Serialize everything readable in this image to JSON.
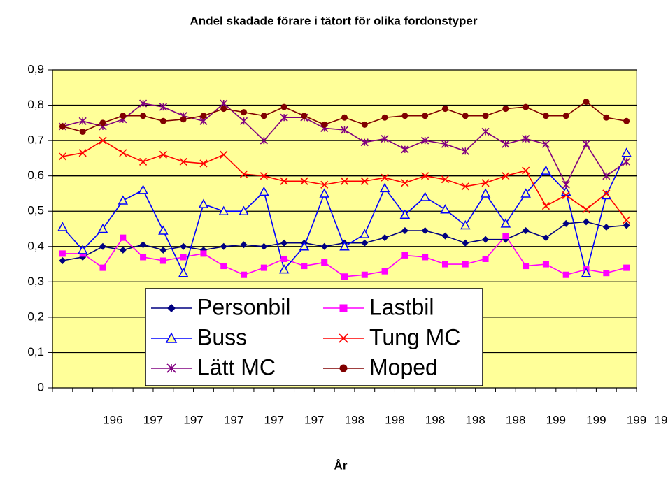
{
  "chart_data": {
    "type": "line",
    "title": "Andel skadade förare i tätort för olika fordonstyper",
    "x_label": "År",
    "categories": [
      null,
      null,
      "196",
      null,
      "197",
      null,
      "197",
      null,
      "197",
      null,
      "197",
      null,
      "197",
      null,
      "198",
      null,
      "198",
      null,
      "198",
      null,
      "198",
      null,
      "198",
      null,
      "199",
      null,
      "199",
      null,
      "199"
    ],
    "clipped_tick_label": "19",
    "ylim": [
      0,
      0.9
    ],
    "yticks": [
      0,
      {
        "value": 0.1,
        "label": "0,1"
      },
      {
        "value": 0.2,
        "label": "0,2"
      },
      {
        "value": 0.3,
        "label": "0,3"
      },
      {
        "value": 0.4,
        "label": "0,4"
      },
      {
        "value": 0.5,
        "label": "0,5"
      },
      {
        "value": 0.6,
        "label": "0,6"
      },
      {
        "value": 0.7,
        "label": "0,7"
      },
      {
        "value": 0.8,
        "label": "0,8"
      },
      {
        "value": 0.9,
        "label": "0,9"
      }
    ],
    "grid": true,
    "plot_background": "#ffff99",
    "series": [
      {
        "name": "Personbil",
        "color": "#000080",
        "marker": "diamond",
        "values": [
          0.36,
          0.37,
          0.4,
          0.39,
          0.405,
          0.39,
          0.4,
          0.39,
          0.4,
          0.405,
          0.4,
          0.41,
          0.41,
          0.4,
          0.41,
          0.41,
          0.425,
          0.445,
          0.445,
          0.43,
          0.41,
          0.42,
          0.42,
          0.445,
          0.425,
          0.465,
          0.47,
          0.455,
          0.46
        ]
      },
      {
        "name": "Lastbil",
        "color": "#ff00ff",
        "marker": "square",
        "values": [
          0.38,
          0.38,
          0.34,
          0.425,
          0.37,
          0.36,
          0.37,
          0.38,
          0.345,
          0.32,
          0.34,
          0.365,
          0.345,
          0.355,
          0.315,
          0.32,
          0.33,
          0.375,
          0.37,
          0.35,
          0.35,
          0.365,
          0.43,
          0.345,
          0.35,
          0.32,
          0.335,
          0.325,
          0.34
        ]
      },
      {
        "name": "Buss",
        "color": "#0000ff",
        "marker": "triangle",
        "values": [
          0.455,
          0.39,
          0.45,
          0.53,
          0.56,
          0.445,
          0.325,
          0.52,
          0.5,
          0.5,
          0.555,
          0.335,
          0.4,
          0.55,
          0.4,
          0.435,
          0.565,
          0.49,
          0.54,
          0.505,
          0.46,
          0.55,
          0.465,
          0.55,
          0.615,
          0.555,
          0.325,
          0.545,
          0.665
        ]
      },
      {
        "name": "Tung MC",
        "color": "#ff0000",
        "marker": "cross",
        "values": [
          0.655,
          0.665,
          0.7,
          0.665,
          0.64,
          0.66,
          0.64,
          0.635,
          0.66,
          0.605,
          0.6,
          0.585,
          0.585,
          0.575,
          0.585,
          0.585,
          0.595,
          0.58,
          0.6,
          0.59,
          0.57,
          0.58,
          0.6,
          0.615,
          0.515,
          0.545,
          0.505,
          0.55,
          0.475
        ]
      },
      {
        "name": "Lätt MC",
        "color": "#800080",
        "marker": "star",
        "values": [
          0.74,
          0.755,
          0.74,
          0.76,
          0.805,
          0.795,
          0.77,
          0.755,
          0.805,
          0.755,
          0.7,
          0.765,
          0.765,
          0.735,
          0.73,
          0.695,
          0.705,
          0.675,
          0.7,
          0.69,
          0.67,
          0.725,
          0.69,
          0.705,
          0.69,
          0.575,
          0.69,
          0.6,
          0.64
        ]
      },
      {
        "name": "Moped",
        "color": "#800000",
        "marker": "circle",
        "values": [
          0.74,
          0.725,
          0.75,
          0.77,
          0.77,
          0.755,
          0.76,
          0.77,
          0.79,
          0.78,
          0.77,
          0.795,
          0.77,
          0.745,
          0.765,
          0.745,
          0.765,
          0.77,
          0.77,
          0.79,
          0.77,
          0.77,
          0.79,
          0.795,
          0.77,
          0.77,
          0.81,
          0.765,
          0.755
        ]
      }
    ]
  }
}
